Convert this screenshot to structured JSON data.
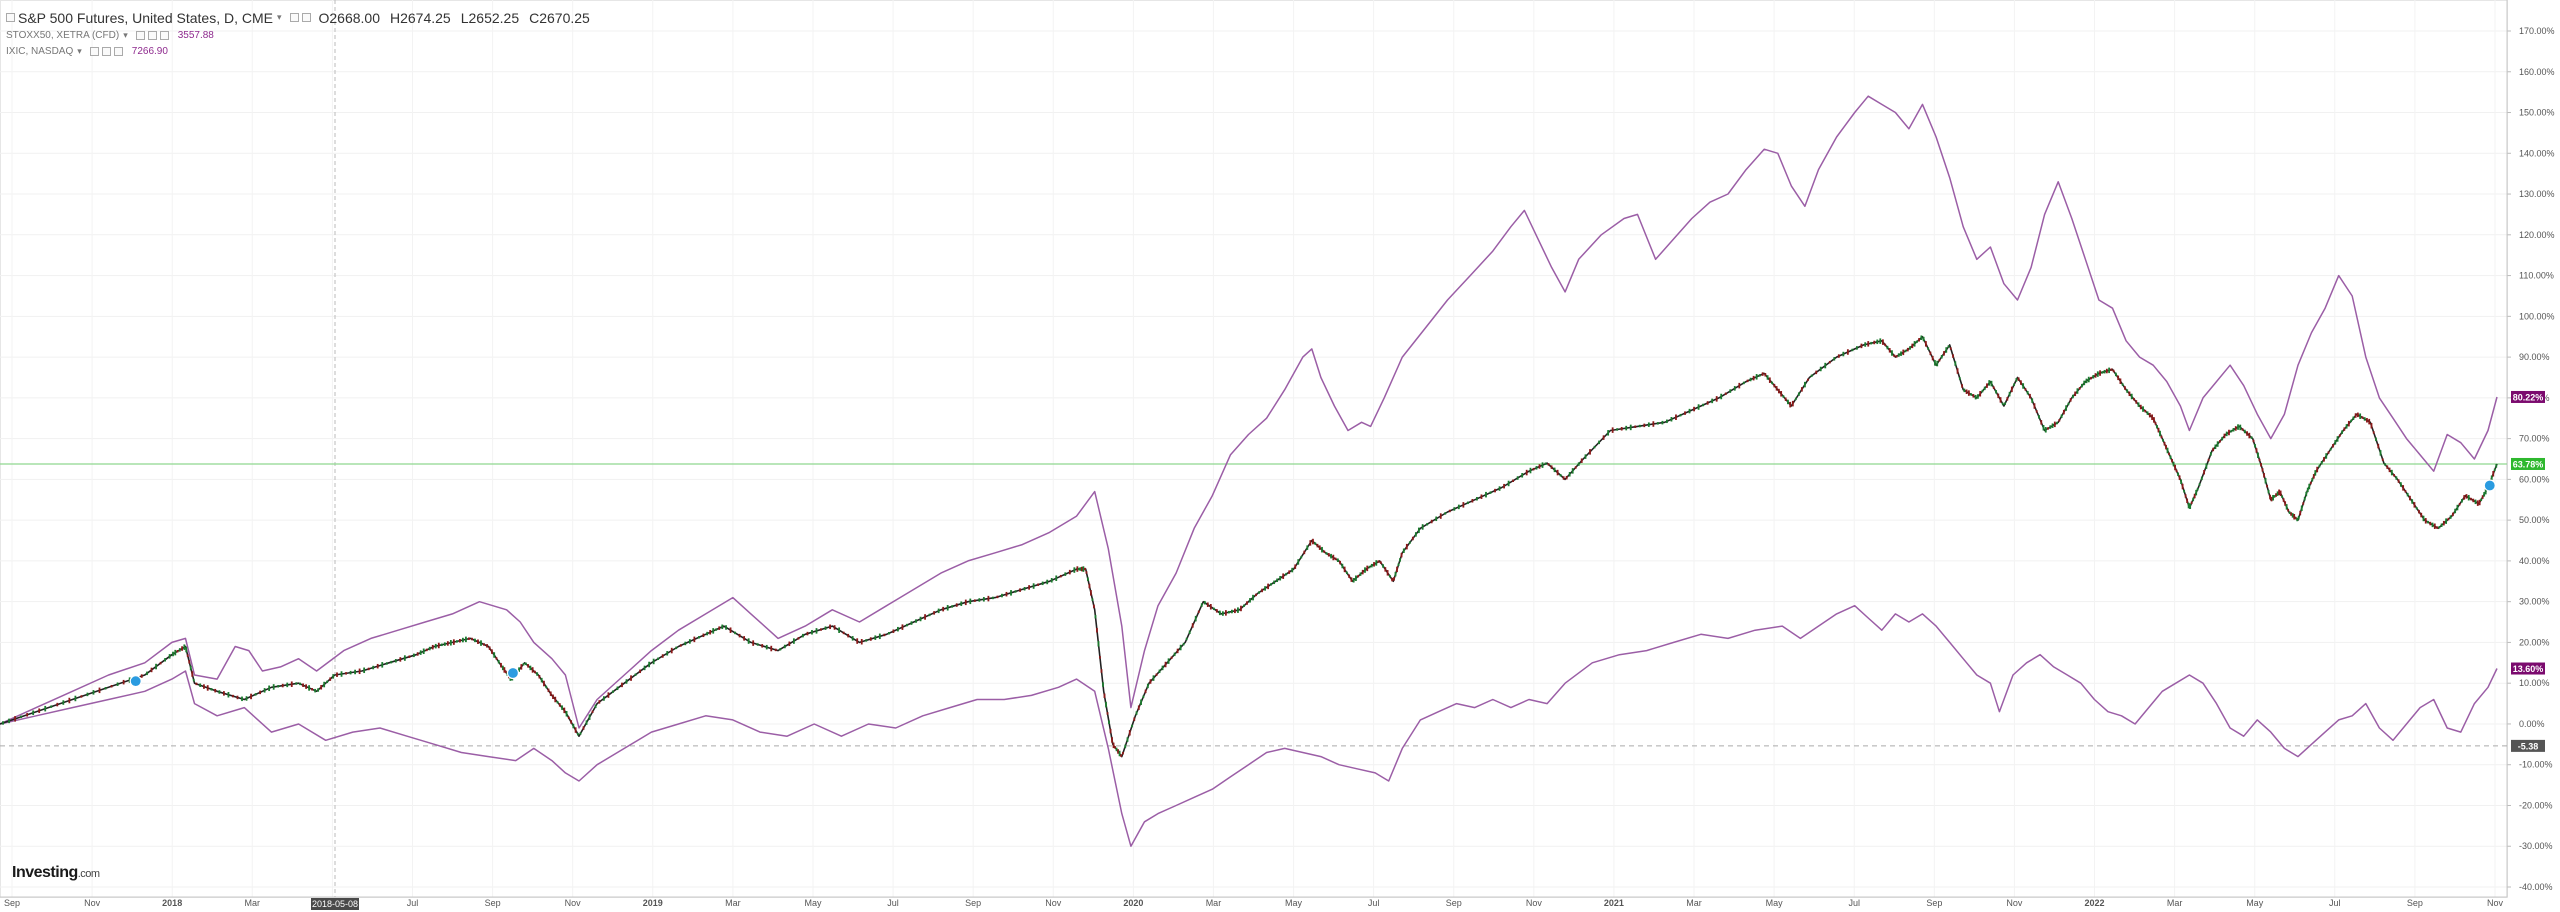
{
  "header": {
    "instrument": "S&P 500 Futures, United States, D, CME",
    "open": "O2668.00",
    "high": "H2674.25",
    "low": "L2652.25",
    "close": "C2670.25",
    "compare": [
      {
        "symbol": "STOXX50, XETRA (CFD)",
        "value": "3557.88"
      },
      {
        "symbol": "IXIC, NASDAQ",
        "value": "7266.90"
      }
    ]
  },
  "logo": {
    "brand": "Investing",
    "suffix": ".com"
  },
  "crosshair_date": "2018-05-08",
  "colors": {
    "up": "#1b7a2e",
    "down": "#8b1a1a",
    "compare_line": "#9b5ea6",
    "last_green": "#2eb82e",
    "last_purple": "#7b0a6e",
    "last_gray": "#555555",
    "hline": "#8fd88f"
  },
  "chart_data": {
    "type": "line",
    "y_unit": "%",
    "ylim": [
      -40,
      170
    ],
    "y_ticks": [
      "170.00%",
      "160.00%",
      "150.00%",
      "140.00%",
      "130.00%",
      "120.00%",
      "110.00%",
      "100.00%",
      "90.00%",
      "80.00%",
      "70.00%",
      "60.00%",
      "50.00%",
      "40.00%",
      "30.00%",
      "20.00%",
      "10.00%",
      "0.00%",
      "-10.00%",
      "-20.00%",
      "-30.00%",
      "-40.00%"
    ],
    "x_ticks": [
      "Sep",
      "Nov",
      "2018",
      "Mar",
      "May",
      "Jul",
      "Sep",
      "Nov",
      "2019",
      "Mar",
      "May",
      "Jul",
      "Sep",
      "Nov",
      "2020",
      "Mar",
      "May",
      "Jul",
      "Sep",
      "Nov",
      "2021",
      "Mar",
      "May",
      "Jul",
      "Sep",
      "Nov",
      "2022",
      "Mar",
      "May",
      "Jul",
      "Sep",
      "Nov"
    ],
    "grid": true,
    "last_values": {
      "nasdaq": "80.22%",
      "sp500": "63.78%",
      "stoxx": "13.60%",
      "baseline": "-5.38"
    },
    "sp500": [
      [
        0,
        0
      ],
      [
        40,
        3
      ],
      [
        80,
        6
      ],
      [
        120,
        9
      ],
      [
        160,
        12
      ],
      [
        190,
        17
      ],
      [
        205,
        19
      ],
      [
        215,
        10
      ],
      [
        240,
        8
      ],
      [
        270,
        6
      ],
      [
        300,
        9
      ],
      [
        330,
        10
      ],
      [
        350,
        8
      ],
      [
        370,
        12
      ],
      [
        400,
        13
      ],
      [
        430,
        15
      ],
      [
        460,
        17
      ],
      [
        480,
        19
      ],
      [
        500,
        20
      ],
      [
        520,
        21
      ],
      [
        540,
        19
      ],
      [
        555,
        14
      ],
      [
        565,
        11
      ],
      [
        580,
        15
      ],
      [
        595,
        12
      ],
      [
        610,
        7
      ],
      [
        625,
        3
      ],
      [
        640,
        -3
      ],
      [
        660,
        5
      ],
      [
        690,
        10
      ],
      [
        720,
        15
      ],
      [
        750,
        19
      ],
      [
        780,
        22
      ],
      [
        800,
        24
      ],
      [
        830,
        20
      ],
      [
        860,
        18
      ],
      [
        890,
        22
      ],
      [
        920,
        24
      ],
      [
        950,
        20
      ],
      [
        980,
        22
      ],
      [
        1010,
        25
      ],
      [
        1040,
        28
      ],
      [
        1070,
        30
      ],
      [
        1100,
        31
      ],
      [
        1130,
        33
      ],
      [
        1160,
        35
      ],
      [
        1190,
        38
      ],
      [
        1200,
        38
      ],
      [
        1210,
        28
      ],
      [
        1220,
        8
      ],
      [
        1230,
        -5
      ],
      [
        1240,
        -8
      ],
      [
        1255,
        2
      ],
      [
        1270,
        10
      ],
      [
        1290,
        15
      ],
      [
        1310,
        20
      ],
      [
        1330,
        30
      ],
      [
        1350,
        27
      ],
      [
        1370,
        28
      ],
      [
        1390,
        32
      ],
      [
        1410,
        35
      ],
      [
        1430,
        38
      ],
      [
        1450,
        45
      ],
      [
        1465,
        42
      ],
      [
        1480,
        40
      ],
      [
        1495,
        35
      ],
      [
        1510,
        38
      ],
      [
        1525,
        40
      ],
      [
        1540,
        35
      ],
      [
        1550,
        42
      ],
      [
        1570,
        48
      ],
      [
        1600,
        52
      ],
      [
        1630,
        55
      ],
      [
        1660,
        58
      ],
      [
        1690,
        62
      ],
      [
        1710,
        64
      ],
      [
        1730,
        60
      ],
      [
        1750,
        65
      ],
      [
        1780,
        72
      ],
      [
        1810,
        73
      ],
      [
        1840,
        74
      ],
      [
        1870,
        77
      ],
      [
        1900,
        80
      ],
      [
        1930,
        84
      ],
      [
        1950,
        86
      ],
      [
        1965,
        82
      ],
      [
        1980,
        78
      ],
      [
        2000,
        85
      ],
      [
        2030,
        90
      ],
      [
        2060,
        93
      ],
      [
        2080,
        94
      ],
      [
        2095,
        90
      ],
      [
        2110,
        92
      ],
      [
        2125,
        95
      ],
      [
        2140,
        88
      ],
      [
        2155,
        93
      ],
      [
        2170,
        82
      ],
      [
        2185,
        80
      ],
      [
        2200,
        84
      ],
      [
        2215,
        78
      ],
      [
        2230,
        85
      ],
      [
        2245,
        80
      ],
      [
        2260,
        72
      ],
      [
        2275,
        74
      ],
      [
        2290,
        80
      ],
      [
        2305,
        84
      ],
      [
        2320,
        86
      ],
      [
        2335,
        87
      ],
      [
        2350,
        82
      ],
      [
        2365,
        78
      ],
      [
        2380,
        75
      ],
      [
        2390,
        70
      ],
      [
        2400,
        65
      ],
      [
        2410,
        60
      ],
      [
        2420,
        53
      ],
      [
        2430,
        58
      ],
      [
        2445,
        67
      ],
      [
        2460,
        71
      ],
      [
        2475,
        73
      ],
      [
        2490,
        70
      ],
      [
        2500,
        63
      ],
      [
        2510,
        55
      ],
      [
        2520,
        57
      ],
      [
        2530,
        52
      ],
      [
        2540,
        50
      ],
      [
        2550,
        57
      ],
      [
        2560,
        62
      ],
      [
        2575,
        67
      ],
      [
        2590,
        72
      ],
      [
        2605,
        76
      ],
      [
        2620,
        74
      ],
      [
        2635,
        64
      ],
      [
        2650,
        60
      ],
      [
        2665,
        55
      ],
      [
        2680,
        50
      ],
      [
        2695,
        48
      ],
      [
        2710,
        51
      ],
      [
        2725,
        56
      ],
      [
        2740,
        54
      ],
      [
        2750,
        58
      ],
      [
        2760,
        63.78
      ]
    ],
    "nasdaq": [
      [
        0,
        0
      ],
      [
        40,
        4
      ],
      [
        80,
        8
      ],
      [
        120,
        12
      ],
      [
        160,
        15
      ],
      [
        190,
        20
      ],
      [
        205,
        21
      ],
      [
        215,
        12
      ],
      [
        240,
        11
      ],
      [
        260,
        19
      ],
      [
        275,
        18
      ],
      [
        290,
        13
      ],
      [
        310,
        14
      ],
      [
        330,
        16
      ],
      [
        350,
        13
      ],
      [
        380,
        18
      ],
      [
        410,
        21
      ],
      [
        440,
        23
      ],
      [
        470,
        25
      ],
      [
        500,
        27
      ],
      [
        530,
        30
      ],
      [
        560,
        28
      ],
      [
        575,
        25
      ],
      [
        590,
        20
      ],
      [
        610,
        16
      ],
      [
        625,
        12
      ],
      [
        640,
        -1
      ],
      [
        660,
        6
      ],
      [
        690,
        12
      ],
      [
        720,
        18
      ],
      [
        750,
        23
      ],
      [
        780,
        27
      ],
      [
        810,
        31
      ],
      [
        830,
        27
      ],
      [
        860,
        21
      ],
      [
        890,
        24
      ],
      [
        920,
        28
      ],
      [
        950,
        25
      ],
      [
        980,
        29
      ],
      [
        1010,
        33
      ],
      [
        1040,
        37
      ],
      [
        1070,
        40
      ],
      [
        1100,
        42
      ],
      [
        1130,
        44
      ],
      [
        1160,
        47
      ],
      [
        1190,
        51
      ],
      [
        1210,
        57
      ],
      [
        1225,
        43
      ],
      [
        1240,
        24
      ],
      [
        1250,
        4
      ],
      [
        1265,
        18
      ],
      [
        1280,
        29
      ],
      [
        1300,
        37
      ],
      [
        1320,
        48
      ],
      [
        1340,
        56
      ],
      [
        1360,
        66
      ],
      [
        1380,
        71
      ],
      [
        1400,
        75
      ],
      [
        1420,
        82
      ],
      [
        1440,
        90
      ],
      [
        1450,
        92
      ],
      [
        1460,
        85
      ],
      [
        1475,
        78
      ],
      [
        1490,
        72
      ],
      [
        1505,
        74
      ],
      [
        1515,
        73
      ],
      [
        1530,
        80
      ],
      [
        1550,
        90
      ],
      [
        1575,
        97
      ],
      [
        1600,
        104
      ],
      [
        1625,
        110
      ],
      [
        1650,
        116
      ],
      [
        1670,
        122
      ],
      [
        1685,
        126
      ],
      [
        1700,
        119
      ],
      [
        1715,
        112
      ],
      [
        1730,
        106
      ],
      [
        1745,
        114
      ],
      [
        1770,
        120
      ],
      [
        1795,
        124
      ],
      [
        1810,
        125
      ],
      [
        1830,
        114
      ],
      [
        1850,
        119
      ],
      [
        1870,
        124
      ],
      [
        1890,
        128
      ],
      [
        1910,
        130
      ],
      [
        1930,
        136
      ],
      [
        1950,
        141
      ],
      [
        1965,
        140
      ],
      [
        1980,
        132
      ],
      [
        1995,
        127
      ],
      [
        2010,
        136
      ],
      [
        2030,
        144
      ],
      [
        2050,
        150
      ],
      [
        2065,
        154
      ],
      [
        2080,
        152
      ],
      [
        2095,
        150
      ],
      [
        2110,
        146
      ],
      [
        2125,
        152
      ],
      [
        2140,
        144
      ],
      [
        2155,
        134
      ],
      [
        2170,
        122
      ],
      [
        2185,
        114
      ],
      [
        2200,
        117
      ],
      [
        2215,
        108
      ],
      [
        2230,
        104
      ],
      [
        2245,
        112
      ],
      [
        2260,
        125
      ],
      [
        2275,
        133
      ],
      [
        2290,
        124
      ],
      [
        2305,
        114
      ],
      [
        2320,
        104
      ],
      [
        2335,
        102
      ],
      [
        2350,
        94
      ],
      [
        2365,
        90
      ],
      [
        2380,
        88
      ],
      [
        2395,
        84
      ],
      [
        2410,
        78
      ],
      [
        2420,
        72
      ],
      [
        2435,
        80
      ],
      [
        2450,
        84
      ],
      [
        2465,
        88
      ],
      [
        2480,
        83
      ],
      [
        2495,
        76
      ],
      [
        2510,
        70
      ],
      [
        2525,
        76
      ],
      [
        2540,
        88
      ],
      [
        2555,
        96
      ],
      [
        2570,
        102
      ],
      [
        2585,
        110
      ],
      [
        2600,
        105
      ],
      [
        2615,
        90
      ],
      [
        2630,
        80
      ],
      [
        2645,
        75
      ],
      [
        2660,
        70
      ],
      [
        2675,
        66
      ],
      [
        2690,
        62
      ],
      [
        2705,
        71
      ],
      [
        2720,
        69
      ],
      [
        2735,
        65
      ],
      [
        2750,
        72
      ],
      [
        2760,
        80.22
      ]
    ],
    "stoxx": [
      [
        0,
        0
      ],
      [
        40,
        2
      ],
      [
        80,
        4
      ],
      [
        120,
        6
      ],
      [
        160,
        8
      ],
      [
        190,
        11
      ],
      [
        205,
        13
      ],
      [
        215,
        5
      ],
      [
        240,
        2
      ],
      [
        270,
        4
      ],
      [
        300,
        -2
      ],
      [
        330,
        0
      ],
      [
        360,
        -4
      ],
      [
        390,
        -2
      ],
      [
        420,
        -1
      ],
      [
        450,
        -3
      ],
      [
        480,
        -5
      ],
      [
        510,
        -7
      ],
      [
        540,
        -8
      ],
      [
        570,
        -9
      ],
      [
        590,
        -6
      ],
      [
        610,
        -9
      ],
      [
        625,
        -12
      ],
      [
        640,
        -14
      ],
      [
        660,
        -10
      ],
      [
        690,
        -6
      ],
      [
        720,
        -2
      ],
      [
        750,
        0
      ],
      [
        780,
        2
      ],
      [
        810,
        1
      ],
      [
        840,
        -2
      ],
      [
        870,
        -3
      ],
      [
        900,
        0
      ],
      [
        930,
        -3
      ],
      [
        960,
        0
      ],
      [
        990,
        -1
      ],
      [
        1020,
        2
      ],
      [
        1050,
        4
      ],
      [
        1080,
        6
      ],
      [
        1110,
        6
      ],
      [
        1140,
        7
      ],
      [
        1170,
        9
      ],
      [
        1190,
        11
      ],
      [
        1210,
        8
      ],
      [
        1225,
        -6
      ],
      [
        1240,
        -22
      ],
      [
        1250,
        -30
      ],
      [
        1265,
        -24
      ],
      [
        1280,
        -22
      ],
      [
        1300,
        -20
      ],
      [
        1320,
        -18
      ],
      [
        1340,
        -16
      ],
      [
        1360,
        -13
      ],
      [
        1380,
        -10
      ],
      [
        1400,
        -7
      ],
      [
        1420,
        -6
      ],
      [
        1440,
        -7
      ],
      [
        1460,
        -8
      ],
      [
        1480,
        -10
      ],
      [
        1500,
        -11
      ],
      [
        1520,
        -12
      ],
      [
        1535,
        -14
      ],
      [
        1550,
        -6
      ],
      [
        1570,
        1
      ],
      [
        1590,
        3
      ],
      [
        1610,
        5
      ],
      [
        1630,
        4
      ],
      [
        1650,
        6
      ],
      [
        1670,
        4
      ],
      [
        1690,
        6
      ],
      [
        1710,
        5
      ],
      [
        1730,
        10
      ],
      [
        1760,
        15
      ],
      [
        1790,
        17
      ],
      [
        1820,
        18
      ],
      [
        1850,
        20
      ],
      [
        1880,
        22
      ],
      [
        1910,
        21
      ],
      [
        1940,
        23
      ],
      [
        1970,
        24
      ],
      [
        1990,
        21
      ],
      [
        2010,
        24
      ],
      [
        2030,
        27
      ],
      [
        2050,
        29
      ],
      [
        2065,
        26
      ],
      [
        2080,
        23
      ],
      [
        2095,
        27
      ],
      [
        2110,
        25
      ],
      [
        2125,
        27
      ],
      [
        2140,
        24
      ],
      [
        2155,
        20
      ],
      [
        2170,
        16
      ],
      [
        2185,
        12
      ],
      [
        2200,
        10
      ],
      [
        2210,
        3
      ],
      [
        2225,
        12
      ],
      [
        2240,
        15
      ],
      [
        2255,
        17
      ],
      [
        2270,
        14
      ],
      [
        2285,
        12
      ],
      [
        2300,
        10
      ],
      [
        2315,
        6
      ],
      [
        2330,
        3
      ],
      [
        2345,
        2
      ],
      [
        2360,
        0
      ],
      [
        2375,
        4
      ],
      [
        2390,
        8
      ],
      [
        2405,
        10
      ],
      [
        2420,
        12
      ],
      [
        2435,
        10
      ],
      [
        2450,
        5
      ],
      [
        2465,
        -1
      ],
      [
        2480,
        -3
      ],
      [
        2495,
        1
      ],
      [
        2510,
        -2
      ],
      [
        2525,
        -6
      ],
      [
        2540,
        -8
      ],
      [
        2555,
        -5
      ],
      [
        2570,
        -2
      ],
      [
        2585,
        1
      ],
      [
        2600,
        2
      ],
      [
        2615,
        5
      ],
      [
        2630,
        -1
      ],
      [
        2645,
        -4
      ],
      [
        2660,
        0
      ],
      [
        2675,
        4
      ],
      [
        2690,
        6
      ],
      [
        2705,
        -1
      ],
      [
        2720,
        -2
      ],
      [
        2735,
        5
      ],
      [
        2750,
        9
      ],
      [
        2760,
        13.6
      ]
    ]
  }
}
